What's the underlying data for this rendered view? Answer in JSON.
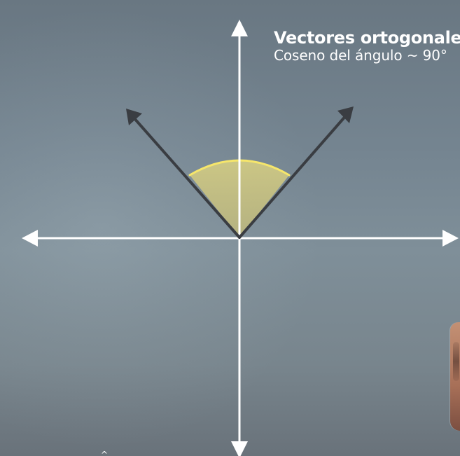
{
  "scene": {
    "title": "Vectores ortogonales",
    "subtitle": "Coseno del ángulo ~ 90°",
    "colors": {
      "background_top": "#697782",
      "background_mid": "#7f8f99",
      "axis": "#ffffff",
      "vector": "#3a3d42",
      "angle_fill": "#d8cf83",
      "angle_stroke": "#f6e66b"
    }
  }
}
